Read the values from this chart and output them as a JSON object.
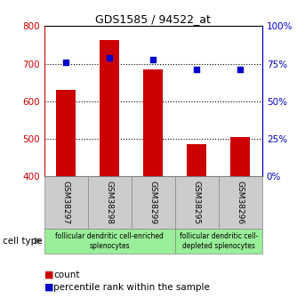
{
  "title": "GDS1585 / 94522_at",
  "samples": [
    "GSM38297",
    "GSM38298",
    "GSM38299",
    "GSM38295",
    "GSM38296"
  ],
  "counts": [
    630,
    762,
    685,
    487,
    505
  ],
  "percentiles": [
    76,
    79,
    78,
    71,
    71
  ],
  "ylim_left": [
    400,
    800
  ],
  "ylim_right": [
    0,
    100
  ],
  "yticks_left": [
    400,
    500,
    600,
    700,
    800
  ],
  "yticks_right": [
    0,
    25,
    50,
    75,
    100
  ],
  "bar_color": "#cc0000",
  "dot_color": "#0000cc",
  "bar_width": 0.45,
  "groups": [
    {
      "label": "follicular dendritic cell-enriched\nsplenocytes",
      "start": 0,
      "end": 2,
      "color": "#aaffaa"
    },
    {
      "label": "follicular dendritic cell-\ndepleted splenocytes",
      "start": 3,
      "end": 4,
      "color": "#aaffaa"
    }
  ],
  "cell_type_label": "cell type",
  "legend_count_label": "count",
  "legend_pct_label": "percentile rank within the sample",
  "left_axis_color": "#cc0000",
  "right_axis_color": "#0000cc",
  "tick_label_bg": "#cccccc",
  "tick_label_border": "#888888",
  "group_color": "#99ee99"
}
